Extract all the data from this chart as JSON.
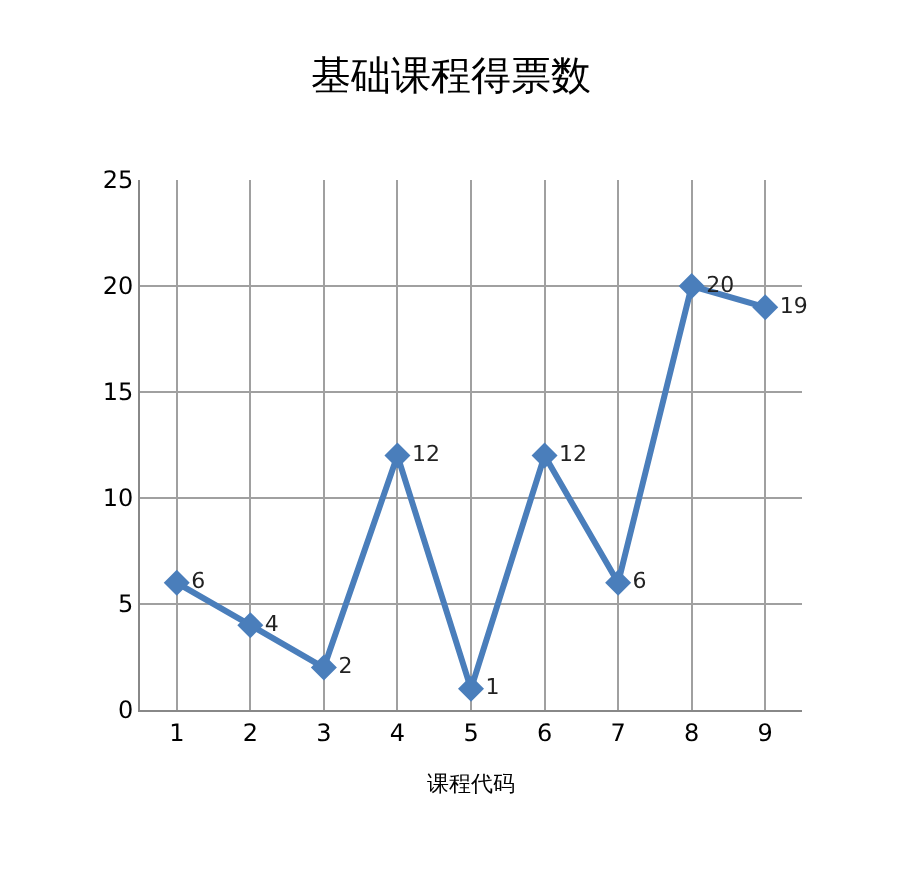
{
  "chart_data": {
    "type": "line",
    "title": "基础课程得票数",
    "xlabel": "课程代码",
    "categories": [
      "1",
      "2",
      "3",
      "4",
      "5",
      "6",
      "7",
      "8",
      "9"
    ],
    "series": [
      {
        "color": "#4a7ebb",
        "values": [
          6,
          4,
          2,
          12,
          1,
          12,
          6,
          20,
          19
        ]
      }
    ],
    "ylim": [
      0,
      25
    ],
    "yticks": [
      0,
      5,
      10,
      15,
      20,
      25
    ],
    "grid": true,
    "marker": "diamond",
    "line_style": "solid",
    "data_labels": true,
    "legend": false
  }
}
